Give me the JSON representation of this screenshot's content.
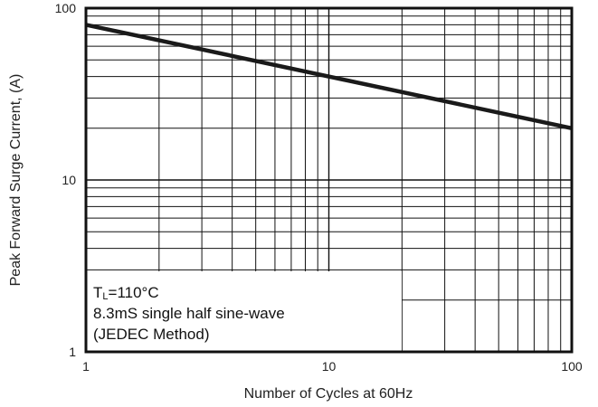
{
  "chart_data": {
    "type": "line",
    "title": "",
    "xlabel": "Number of Cycles at 60Hz",
    "ylabel": "Peak Forward Surge Current, (A)",
    "x_scale": "log",
    "y_scale": "log",
    "xlim": [
      1,
      100
    ],
    "ylim": [
      1,
      100
    ],
    "x_ticks": [
      {
        "value": 1,
        "label": "1"
      },
      {
        "value": 10,
        "label": "10"
      },
      {
        "value": 100,
        "label": "100"
      }
    ],
    "y_ticks": [
      {
        "value": 1,
        "label": "1"
      },
      {
        "value": 10,
        "label": "10"
      },
      {
        "value": 100,
        "label": "100"
      }
    ],
    "grid": true,
    "series": [
      {
        "name": "",
        "color": "#1a1a1a",
        "x": [
          1,
          100
        ],
        "y": [
          80,
          20
        ]
      }
    ],
    "annotation": {
      "tl_main": "T",
      "tl_sub": "L",
      "tl_value": "=110°C",
      "line2": "8.3mS single half sine-wave",
      "line3": "(JEDEC Method)"
    }
  }
}
